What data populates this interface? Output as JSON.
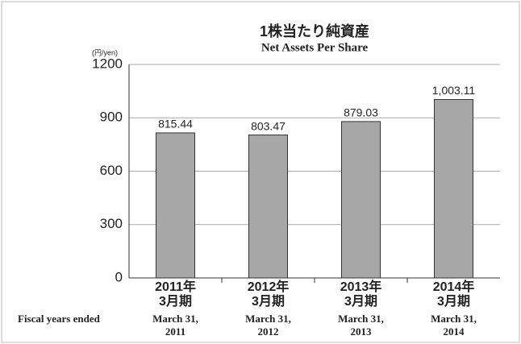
{
  "chart_data": {
    "type": "bar",
    "title": "1株当たり純資産",
    "subtitle": "Net Assets Per Share",
    "y_unit_label": "(円/yen)",
    "x_label": "Fiscal years ended",
    "categories": [
      [
        "2011年",
        "3月期"
      ],
      [
        "2012年",
        "3月期"
      ],
      [
        "2013年",
        "3月期"
      ],
      [
        "2014年",
        "3月期"
      ]
    ],
    "english_categories": [
      [
        "March 31,",
        "2011"
      ],
      [
        "March 31,",
        "2012"
      ],
      [
        "March 31,",
        "2013"
      ],
      [
        "March 31,",
        "2014"
      ]
    ],
    "values": [
      815.44,
      803.47,
      879.03,
      1003.11
    ],
    "value_labels": [
      "815.44",
      "803.47",
      "879.03",
      "1,003.11"
    ],
    "color": "#a7a7a7",
    "ylim": [
      0,
      1200
    ],
    "yticks": [
      0,
      300,
      600,
      900,
      1200
    ],
    "grid": true
  }
}
